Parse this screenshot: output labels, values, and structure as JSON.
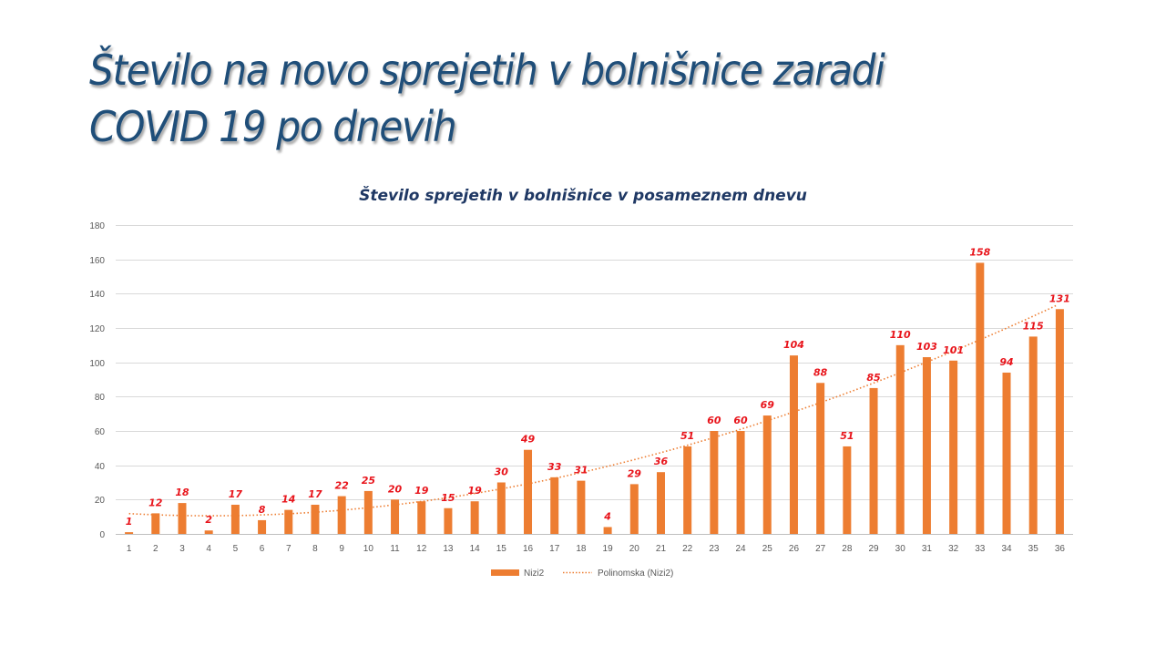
{
  "slide": {
    "title_line1": "Število na novo sprejetih v bolnišnice zaradi",
    "title_line2": "COVID 19 po dnevih"
  },
  "chart_data": {
    "type": "bar",
    "title": "Število sprejetih v bolnišnice v posameznem dnevu",
    "xlabel": "",
    "ylabel": "",
    "ylim": [
      0,
      180
    ],
    "yticks": [
      0,
      20,
      40,
      60,
      80,
      100,
      120,
      140,
      160,
      180
    ],
    "grid": true,
    "legend_position": "bottom",
    "categories": [
      "1",
      "2",
      "3",
      "4",
      "5",
      "6",
      "7",
      "8",
      "9",
      "10",
      "11",
      "12",
      "13",
      "14",
      "15",
      "16",
      "17",
      "18",
      "19",
      "20",
      "21",
      "22",
      "23",
      "24",
      "25",
      "26",
      "27",
      "28",
      "29",
      "30",
      "31",
      "32",
      "33",
      "34",
      "35",
      "36"
    ],
    "series": [
      {
        "name": "Nizi2",
        "type": "bar",
        "color": "#ed7d31",
        "values": [
          1,
          12,
          18,
          2,
          17,
          8,
          14,
          17,
          22,
          25,
          20,
          19,
          15,
          19,
          30,
          49,
          33,
          31,
          4,
          29,
          36,
          51,
          60,
          60,
          69,
          104,
          88,
          51,
          85,
          110,
          103,
          101,
          158,
          94,
          115,
          131
        ]
      },
      {
        "name": "Polinomska (Nizi2)",
        "type": "trendline-polynomial",
        "color": "#ed7d31",
        "style": "dotted"
      }
    ],
    "data_label_color": "#e8141b"
  },
  "legend": {
    "bar_label": "Nizi2",
    "trend_label": "Polinomska (Nizi2)"
  }
}
